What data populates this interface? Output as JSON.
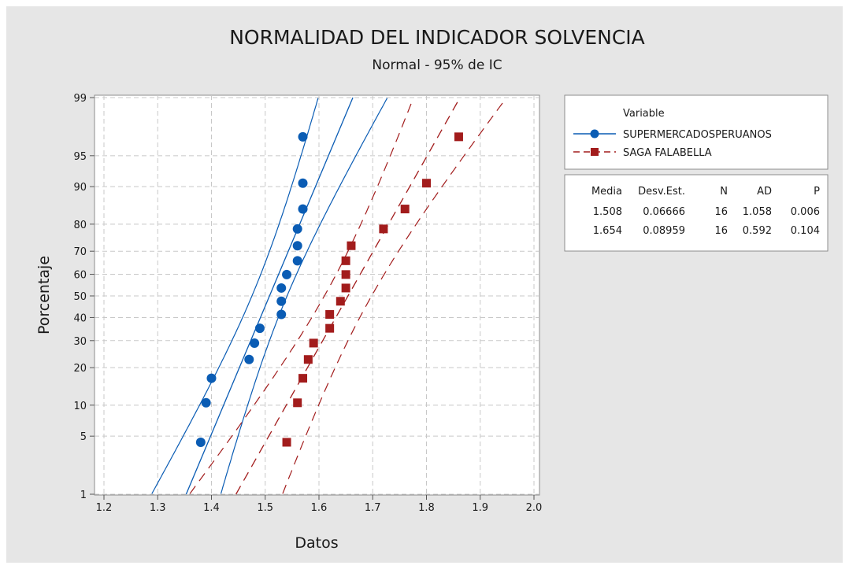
{
  "chart_data": {
    "type": "scatter",
    "title": "NORMALIDAD DEL INDICADOR SOLVENCIA",
    "subtitle": "Normal - 95% de IC",
    "xlabel": "Datos",
    "ylabel": "Porcentaje",
    "xlim": [
      1.2,
      2.0
    ],
    "xticks": [
      "1.2",
      "1.3",
      "1.4",
      "1.5",
      "1.6",
      "1.7",
      "1.8",
      "1.9",
      "2.0"
    ],
    "yscale": "normal-probability",
    "ylim": [
      1,
      99
    ],
    "yticks": [
      "1",
      "5",
      "10",
      "20",
      "30",
      "40",
      "50",
      "60",
      "70",
      "80",
      "90",
      "95",
      "99"
    ],
    "grid": true,
    "legend_position": "right",
    "legend_title": "Variable",
    "series": [
      {
        "name": "SUPERMERCADOSPERUANOS",
        "color": "#0a5cb4",
        "marker": "circle",
        "line": "solid",
        "mean": 1.508,
        "stdev": 0.06666,
        "n": 16,
        "x": [
          1.38,
          1.39,
          1.4,
          1.47,
          1.48,
          1.49,
          1.53,
          1.53,
          1.53,
          1.54,
          1.56,
          1.56,
          1.56,
          1.57,
          1.57,
          1.57
        ],
        "y": [
          4.3,
          10.5,
          16.7,
          22.8,
          29.0,
          35.2,
          41.4,
          47.5,
          53.7,
          59.9,
          66.0,
          72.2,
          78.4,
          84.6,
          90.7,
          96.9
        ]
      },
      {
        "name": "SAGA FALABELLA",
        "color": "#a21c1c",
        "marker": "square",
        "line": "dashed",
        "mean": 1.654,
        "stdev": 0.08959,
        "n": 16,
        "x": [
          1.54,
          1.56,
          1.57,
          1.58,
          1.59,
          1.62,
          1.62,
          1.64,
          1.65,
          1.65,
          1.65,
          1.66,
          1.72,
          1.76,
          1.8,
          1.86
        ],
        "y": [
          4.3,
          10.5,
          16.7,
          22.8,
          29.0,
          35.2,
          41.4,
          47.5,
          53.7,
          59.9,
          66.0,
          72.2,
          78.4,
          84.6,
          90.7,
          96.9
        ]
      }
    ],
    "stats_table": {
      "headers": [
        "Media",
        "Desv.Est.",
        "N",
        "AD",
        "P"
      ],
      "rows": [
        [
          "1.508",
          "0.06666",
          "16",
          "1.058",
          "0.006"
        ],
        [
          "1.654",
          "0.08959",
          "16",
          "0.592",
          "0.104"
        ]
      ]
    }
  }
}
